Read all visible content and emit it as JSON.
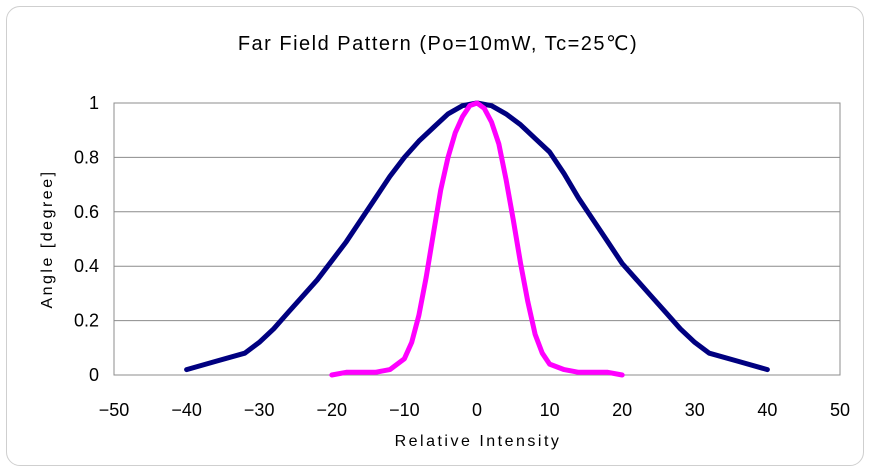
{
  "chart_data": {
    "type": "line",
    "title": "Far Field Pattern (Po=10mW, Tc=25℃)",
    "xlabel": "Relative Intensity",
    "ylabel": "Angle [degree]",
    "xlim": [
      -50,
      50
    ],
    "ylim": [
      0,
      1
    ],
    "xticks": [
      "−50",
      "−40",
      "−30",
      "−20",
      "−10",
      "0",
      "10",
      "20",
      "30",
      "40",
      "50"
    ],
    "yticks": [
      "0",
      "0.2",
      "0.4",
      "0.6",
      "0.8",
      "1"
    ],
    "grid": true,
    "legend": "none",
    "series": [
      {
        "color": "#000080",
        "points": [
          [
            -40,
            0.02
          ],
          [
            -36,
            0.05
          ],
          [
            -32,
            0.08
          ],
          [
            -30,
            0.12
          ],
          [
            -28,
            0.17
          ],
          [
            -26,
            0.23
          ],
          [
            -24,
            0.29
          ],
          [
            -22,
            0.35
          ],
          [
            -20,
            0.42
          ],
          [
            -18,
            0.49
          ],
          [
            -16,
            0.57
          ],
          [
            -14,
            0.65
          ],
          [
            -12,
            0.73
          ],
          [
            -10,
            0.8
          ],
          [
            -8,
            0.86
          ],
          [
            -6,
            0.91
          ],
          [
            -4,
            0.96
          ],
          [
            -2,
            0.99
          ],
          [
            0,
            1.0
          ],
          [
            2,
            0.99
          ],
          [
            4,
            0.96
          ],
          [
            6,
            0.92
          ],
          [
            8,
            0.87
          ],
          [
            10,
            0.82
          ],
          [
            12,
            0.74
          ],
          [
            14,
            0.65
          ],
          [
            16,
            0.57
          ],
          [
            18,
            0.49
          ],
          [
            20,
            0.41
          ],
          [
            22,
            0.35
          ],
          [
            24,
            0.29
          ],
          [
            26,
            0.23
          ],
          [
            28,
            0.17
          ],
          [
            30,
            0.12
          ],
          [
            32,
            0.08
          ],
          [
            36,
            0.05
          ],
          [
            40,
            0.02
          ]
        ]
      },
      {
        "color": "#ff00ff",
        "points": [
          [
            -20,
            0.0
          ],
          [
            -18,
            0.01
          ],
          [
            -16,
            0.01
          ],
          [
            -14,
            0.01
          ],
          [
            -12,
            0.02
          ],
          [
            -10,
            0.06
          ],
          [
            -9,
            0.12
          ],
          [
            -8,
            0.22
          ],
          [
            -7,
            0.36
          ],
          [
            -6,
            0.52
          ],
          [
            -5,
            0.68
          ],
          [
            -4,
            0.8
          ],
          [
            -3,
            0.89
          ],
          [
            -2,
            0.95
          ],
          [
            -1,
            0.99
          ],
          [
            0,
            1.0
          ],
          [
            1,
            0.98
          ],
          [
            2,
            0.93
          ],
          [
            3,
            0.85
          ],
          [
            4,
            0.72
          ],
          [
            5,
            0.57
          ],
          [
            6,
            0.41
          ],
          [
            7,
            0.27
          ],
          [
            8,
            0.15
          ],
          [
            9,
            0.08
          ],
          [
            10,
            0.04
          ],
          [
            12,
            0.02
          ],
          [
            14,
            0.01
          ],
          [
            16,
            0.01
          ],
          [
            18,
            0.01
          ],
          [
            20,
            0.0
          ]
        ]
      }
    ]
  }
}
